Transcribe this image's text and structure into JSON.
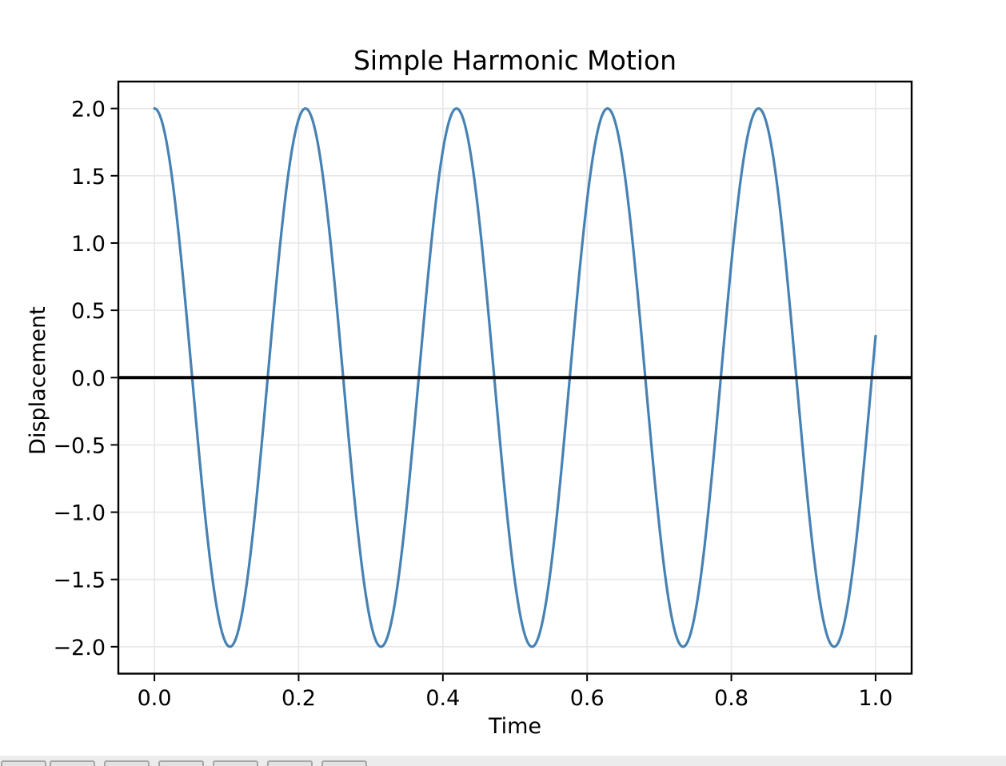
{
  "window": {
    "background": "#ffffff"
  },
  "chart_data": {
    "type": "line",
    "title": "Simple Harmonic Motion",
    "xlabel": "Time",
    "ylabel": "Displacement",
    "xlim": [
      -0.05,
      1.05
    ],
    "ylim": [
      -2.2,
      2.2
    ],
    "grid": true,
    "grid_color": "#e7e7e7",
    "axes_edge_color": "#000000",
    "text_color": "#000000",
    "x_ticks": {
      "values": [
        0.0,
        0.2,
        0.4,
        0.6,
        0.8,
        1.0
      ],
      "labels": [
        "0.0",
        "0.2",
        "0.4",
        "0.6",
        "0.8",
        "1.0"
      ]
    },
    "y_ticks": {
      "values": [
        2.0,
        1.5,
        1.0,
        0.5,
        0.0,
        -0.5,
        -1.0,
        -1.5,
        -2.0
      ],
      "labels": [
        "2.0",
        "1.5",
        "1.0",
        "0.5",
        "0.0",
        "−0.5",
        "−1.0",
        "−1.5",
        "−2.0"
      ]
    },
    "hline": {
      "y": 0,
      "color": "#000000"
    },
    "series": [
      {
        "name": "displacement",
        "color": "#4682b4",
        "model": {
          "expression": "x(t) = 2·cos(30·t)",
          "amplitude": 2,
          "angular_frequency": 30,
          "phase": 0
        },
        "t_range": [
          0,
          1
        ],
        "peaks_t": [
          0,
          0.209,
          0.419,
          0.628,
          0.838
        ],
        "peak_value": 2.0,
        "troughs_t": [
          0.105,
          0.314,
          0.524,
          0.733,
          0.942
        ],
        "trough_value": -2.0,
        "start_value": 2.0,
        "end_value": 0.31
      }
    ]
  },
  "toolbar": {
    "buttons": [
      {
        "name": "home"
      },
      {
        "name": "back"
      },
      {
        "name": "forward"
      },
      {
        "name": "pan"
      },
      {
        "name": "zoom"
      },
      {
        "name": "subplots"
      },
      {
        "name": "save"
      }
    ]
  }
}
